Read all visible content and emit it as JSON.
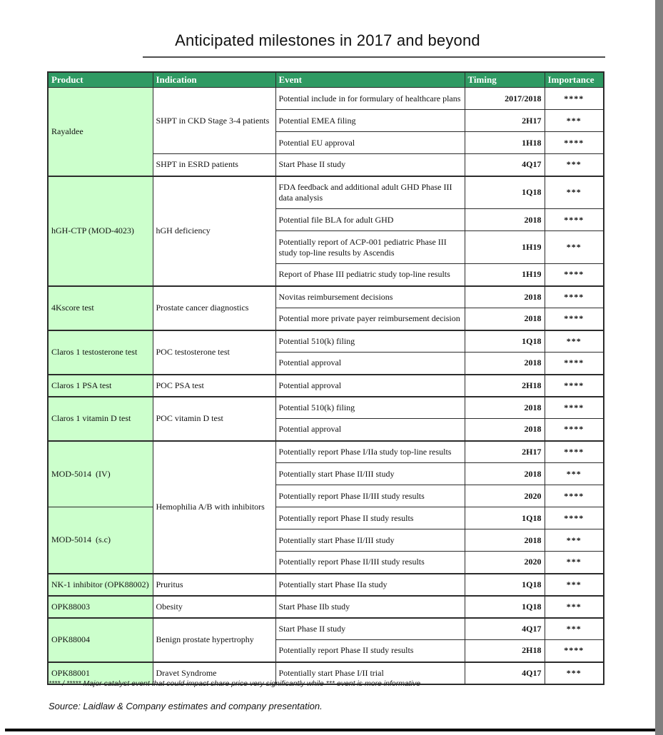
{
  "page": {
    "title": "Anticipated milestones in 2017 and beyond",
    "footnote": "**** / ***** Major catalyst event that could impact share price very significantly while *** event is more informative",
    "source": "Source: Laidlaw & Company estimates and company presentation."
  },
  "colors": {
    "header_bg": "#2f9a63",
    "product_bg": "#ccffcc",
    "border": "#2b2b2b",
    "edge_strip": "#7f7f7f"
  },
  "table": {
    "headers": [
      "Product",
      "Indication",
      "Event",
      "Timing",
      "Importance"
    ],
    "rows": [
      {
        "product": "Rayaldee",
        "indication": "SHPT in CKD Stage 3-4 patients",
        "event": "Potential include in for formulary of healthcare plans",
        "timing": "2017/2018",
        "importance": "****"
      },
      {
        "event": "Potential EMEA filing",
        "timing": "2H17",
        "importance": "***"
      },
      {
        "event": "Potential EU approval",
        "timing": "1H18",
        "importance": "****"
      },
      {
        "indication": "SHPT in ESRD patients",
        "event": "Start Phase II study",
        "timing": "4Q17",
        "importance": "***"
      },
      {
        "product": "hGH-CTP (MOD-4023)",
        "indication": "hGH deficiency",
        "event": "FDA feedback and additional adult GHD Phase III data analysis",
        "timing": "1Q18",
        "importance": "***"
      },
      {
        "event": "Potential file BLA for adult GHD",
        "timing": "2018",
        "importance": "****"
      },
      {
        "event": "Potentially report of ACP-001 pediatric Phase III study top-line results by Ascendis",
        "timing": "1H19",
        "importance": "***"
      },
      {
        "event": "Report of Phase III pediatric study top-line results",
        "timing": "1H19",
        "importance": "****"
      },
      {
        "product": "4Kscore test",
        "indication": "Prostate cancer diagnostics",
        "event": "Novitas reimbursement decisions",
        "timing": "2018",
        "importance": "****"
      },
      {
        "event": "Potential more private payer reimbursement decision",
        "timing": "2018",
        "importance": "****"
      },
      {
        "product": "Claros 1 testosterone test",
        "indication": "POC testosterone test",
        "event": "Potential 510(k) filing",
        "timing": "1Q18",
        "importance": "***"
      },
      {
        "event": "Potential approval",
        "timing": "2018",
        "importance": "****"
      },
      {
        "product": "Claros 1 PSA test",
        "indication": "POC PSA test",
        "event": "Potential approval",
        "timing": "2H18",
        "importance": "****"
      },
      {
        "product": "Claros 1 vitamin D test",
        "indication": "POC vitamin D test",
        "event": "Potential 510(k) filing",
        "timing": "2018",
        "importance": "****"
      },
      {
        "event": "Potential approval",
        "timing": "2018",
        "importance": "****"
      },
      {
        "product": "MOD-5014  (IV)",
        "indication": "Hemophilia A/B with inhibitors",
        "event": "Potentially report Phase I/IIa study top-line results",
        "timing": "2H17",
        "importance": "****"
      },
      {
        "event": "Potentially start Phase II/III study",
        "timing": "2018",
        "importance": "***"
      },
      {
        "event": "Potentially report Phase II/III study results",
        "timing": "2020",
        "importance": "****"
      },
      {
        "product": "MOD-5014  (s.c)",
        "event": "Potentially report Phase II study results",
        "timing": "1Q18",
        "importance": "****"
      },
      {
        "event": "Potentially start Phase II/III study",
        "timing": "2018",
        "importance": "***"
      },
      {
        "event": "Potentially report Phase II/III study results",
        "timing": "2020",
        "importance": "***"
      },
      {
        "product": "NK-1 inhibitor (OPK88002)",
        "indication": "Pruritus",
        "event": "Potentially start Phase IIa study",
        "timing": "1Q18",
        "importance": "***"
      },
      {
        "product": "OPK88003",
        "indication": "Obesity",
        "event": "Start Phase IIb study",
        "timing": "1Q18",
        "importance": "***"
      },
      {
        "product": "OPK88004",
        "indication": "Benign prostate hypertrophy",
        "event": "Start Phase II study",
        "timing": "4Q17",
        "importance": "***"
      },
      {
        "event": "Potentially report Phase II study results",
        "timing": "2H18",
        "importance": "****"
      },
      {
        "product": "OPK88001",
        "indication": "Dravet Syndrome",
        "event": "Potentially start Phase I/II trial",
        "timing": "4Q17",
        "importance": "***"
      }
    ]
  }
}
